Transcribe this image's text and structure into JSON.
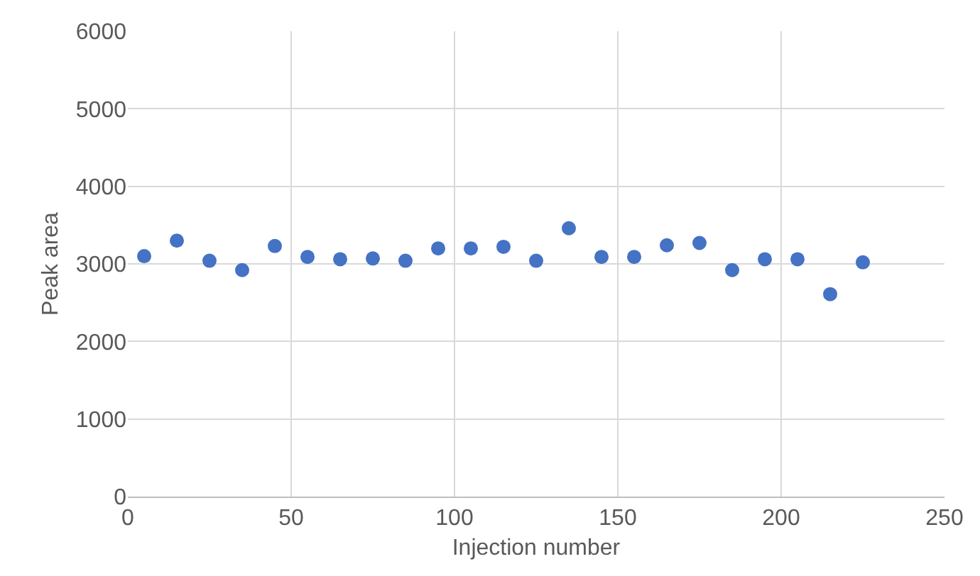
{
  "chart_data": {
    "type": "scatter",
    "xlabel": "Injection number",
    "ylabel": "Peak area",
    "x": [
      5,
      15,
      25,
      35,
      45,
      55,
      65,
      75,
      85,
      95,
      105,
      115,
      125,
      135,
      145,
      155,
      165,
      175,
      185,
      195,
      205,
      215,
      225
    ],
    "series": [
      {
        "color": "#4472c4",
        "values": [
          3100,
          3300,
          3040,
          2920,
          3230,
          3090,
          3060,
          3070,
          3040,
          3200,
          3200,
          3220,
          3040,
          3460,
          3090,
          3090,
          3240,
          3270,
          2920,
          3060,
          3060,
          2610,
          3020
        ]
      }
    ],
    "xlim": [
      0,
      250
    ],
    "xticks": [
      0,
      50,
      100,
      150,
      200,
      250
    ],
    "ylim": [
      0,
      6000
    ],
    "yticks": [
      0,
      1000,
      2000,
      3000,
      4000,
      5000,
      6000
    ],
    "grid": true,
    "marker": "circle"
  }
}
